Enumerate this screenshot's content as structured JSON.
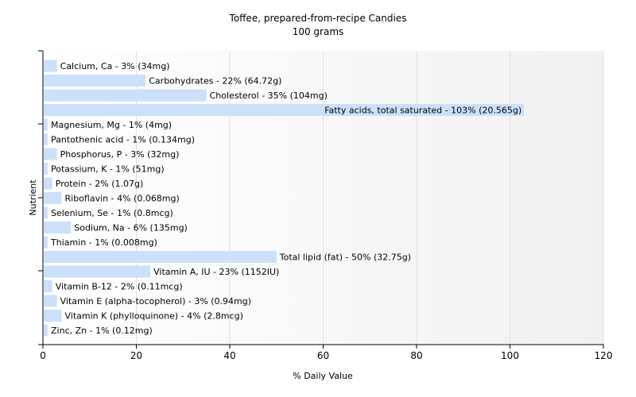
{
  "chart_data": {
    "type": "bar",
    "orientation": "horizontal",
    "title": "Toffee, prepared-from-recipe Candies",
    "subtitle": "100 grams",
    "xlabel": "% Daily Value",
    "ylabel": "Nutrient",
    "xlim": [
      0,
      120
    ],
    "xticks": [
      "0",
      "20",
      "40",
      "60",
      "80",
      "100",
      "120"
    ],
    "grid": true,
    "bar_color": "#cce0fa",
    "categories": [
      "Calcium, Ca",
      "Carbohydrates",
      "Cholesterol",
      "Fatty acids, total saturated",
      "Magnesium, Mg",
      "Pantothenic acid",
      "Phosphorus, P",
      "Potassium, K",
      "Protein",
      "Riboflavin",
      "Selenium, Se",
      "Sodium, Na",
      "Thiamin",
      "Total lipid (fat)",
      "Vitamin A, IU",
      "Vitamin B-12",
      "Vitamin E (alpha-tocopherol)",
      "Vitamin K (phylloquinone)",
      "Zinc, Zn"
    ],
    "values": [
      3,
      22,
      35,
      103,
      1,
      1,
      3,
      1,
      2,
      4,
      1,
      6,
      1,
      50,
      23,
      2,
      3,
      4,
      1
    ],
    "labels": [
      "Calcium, Ca - 3% (34mg)",
      "Carbohydrates - 22% (64.72g)",
      "Cholesterol - 35% (104mg)",
      "Fatty acids, total saturated - 103% (20.565g)",
      "Magnesium, Mg - 1% (4mg)",
      "Pantothenic acid - 1% (0.134mg)",
      "Phosphorus, P - 3% (32mg)",
      "Potassium, K - 1% (51mg)",
      "Protein - 2% (1.07g)",
      "Riboflavin - 4% (0.068mg)",
      "Selenium, Se - 1% (0.8mcg)",
      "Sodium, Na - 6% (135mg)",
      "Thiamin - 1% (0.008mg)",
      "Total lipid (fat) - 50% (32.75g)",
      "Vitamin A, IU - 23% (1152IU)",
      "Vitamin B-12 - 2% (0.11mcg)",
      "Vitamin E (alpha-tocopherol) - 3% (0.94mg)",
      "Vitamin K (phylloquinone) - 4% (2.8mcg)",
      "Zinc, Zn - 1% (0.12mg)"
    ]
  }
}
